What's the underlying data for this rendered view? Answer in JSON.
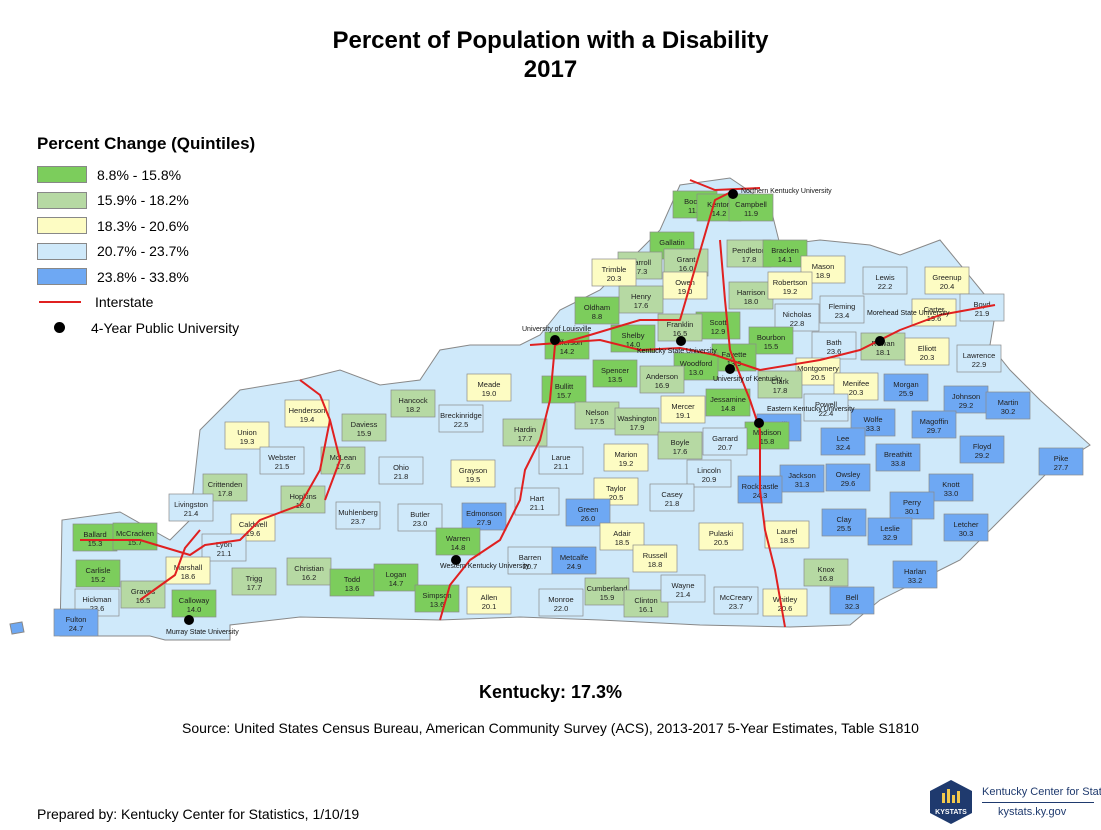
{
  "title": {
    "line1": "Percent of Population with a Disability",
    "line2": "2017"
  },
  "legend": {
    "title": "Percent Change (Quintiles)",
    "classes": [
      {
        "label": "8.8% - 15.8%",
        "color": "#7ccd5c"
      },
      {
        "label": "15.9% - 18.2%",
        "color": "#b6d9a3"
      },
      {
        "label": "18.3% - 20.6%",
        "color": "#fdfcc3"
      },
      {
        "label": "20.7% - 23.7%",
        "color": "#cfe9fa"
      },
      {
        "label": "23.8% - 33.8%",
        "color": "#6ea8f3"
      }
    ],
    "interstate_label": "Interstate",
    "interstate_color": "#e02020",
    "university_label": "4-Year Public University"
  },
  "counties": [
    {
      "name": "Boone",
      "value": "11.1"
    },
    {
      "name": "Kenton",
      "value": "14.2"
    },
    {
      "name": "Campbell",
      "value": "11.9"
    },
    {
      "name": "Gallatin",
      "value": "14.1"
    },
    {
      "name": "Carroll",
      "value": "17.3"
    },
    {
      "name": "Trimble",
      "value": "20.3"
    },
    {
      "name": "Grant",
      "value": "16.0"
    },
    {
      "name": "Pendleton",
      "value": "17.8"
    },
    {
      "name": "Bracken",
      "value": "14.1"
    },
    {
      "name": "Mason",
      "value": "18.9"
    },
    {
      "name": "Lewis",
      "value": "22.2"
    },
    {
      "name": "Greenup",
      "value": "20.4"
    },
    {
      "name": "Boyd",
      "value": "21.9"
    },
    {
      "name": "Owen",
      "value": "19.0"
    },
    {
      "name": "Henry",
      "value": "17.6"
    },
    {
      "name": "Oldham",
      "value": "8.8"
    },
    {
      "name": "Harrison",
      "value": "18.0"
    },
    {
      "name": "Robertson",
      "value": "19.2"
    },
    {
      "name": "Fleming",
      "value": "23.4"
    },
    {
      "name": "Carter",
      "value": "19.6"
    },
    {
      "name": "Scott",
      "value": "12.9"
    },
    {
      "name": "Franklin",
      "value": "16.5"
    },
    {
      "name": "Shelby",
      "value": "14.0"
    },
    {
      "name": "Jefferson",
      "value": "14.2"
    },
    {
      "name": "Nicholas",
      "value": "22.8"
    },
    {
      "name": "Bath",
      "value": "23.6"
    },
    {
      "name": "Rowan",
      "value": "18.1"
    },
    {
      "name": "Elliott",
      "value": "20.3"
    },
    {
      "name": "Lawrence",
      "value": "22.9"
    },
    {
      "name": "Bourbon",
      "value": "15.5"
    },
    {
      "name": "Fayette",
      "value": "13.9"
    },
    {
      "name": "Woodford",
      "value": "13.0"
    },
    {
      "name": "Anderson",
      "value": "16.9"
    },
    {
      "name": "Spencer",
      "value": "13.5"
    },
    {
      "name": "Bullitt",
      "value": "15.7"
    },
    {
      "name": "Meade",
      "value": "19.0"
    },
    {
      "name": "Montgomery",
      "value": "20.5"
    },
    {
      "name": "Clark",
      "value": "17.8"
    },
    {
      "name": "Menifee",
      "value": "20.3"
    },
    {
      "name": "Morgan",
      "value": "25.9"
    },
    {
      "name": "Johnson",
      "value": "29.2"
    },
    {
      "name": "Martin",
      "value": "30.2"
    },
    {
      "name": "Hancock",
      "value": "18.2"
    },
    {
      "name": "Breckinridge",
      "value": "22.5"
    },
    {
      "name": "Nelson",
      "value": "17.5"
    },
    {
      "name": "Washington",
      "value": "17.9"
    },
    {
      "name": "Mercer",
      "value": "19.1"
    },
    {
      "name": "Jessamine",
      "value": "14.8"
    },
    {
      "name": "Powell",
      "value": "22.4"
    },
    {
      "name": "Estill",
      "value": "25.6"
    },
    {
      "name": "Wolfe",
      "value": "33.3"
    },
    {
      "name": "Magoffin",
      "value": "29.7"
    },
    {
      "name": "Floyd",
      "value": "29.2"
    },
    {
      "name": "Pike",
      "value": "27.7"
    },
    {
      "name": "Henderson",
      "value": "19.4"
    },
    {
      "name": "Daviess",
      "value": "15.9"
    },
    {
      "name": "Union",
      "value": "19.3"
    },
    {
      "name": "Hardin",
      "value": "17.7"
    },
    {
      "name": "Madison",
      "value": "15.8"
    },
    {
      "name": "Garrard",
      "value": "20.7"
    },
    {
      "name": "Boyle",
      "value": "17.6"
    },
    {
      "name": "Lee",
      "value": "32.4"
    },
    {
      "name": "Breathitt",
      "value": "33.8"
    },
    {
      "name": "Webster",
      "value": "21.5"
    },
    {
      "name": "McLean",
      "value": "17.6"
    },
    {
      "name": "Ohio",
      "value": "21.8"
    },
    {
      "name": "Grayson",
      "value": "19.5"
    },
    {
      "name": "Larue",
      "value": "21.1"
    },
    {
      "name": "Marion",
      "value": "19.2"
    },
    {
      "name": "Lincoln",
      "value": "20.9"
    },
    {
      "name": "Jackson",
      "value": "31.3"
    },
    {
      "name": "Owsley",
      "value": "29.6"
    },
    {
      "name": "Knott",
      "value": "33.0"
    },
    {
      "name": "Perry",
      "value": "30.1"
    },
    {
      "name": "Letcher",
      "value": "30.3"
    },
    {
      "name": "Crittenden",
      "value": "17.8"
    },
    {
      "name": "Hopkins",
      "value": "18.0"
    },
    {
      "name": "Livingston",
      "value": "21.4"
    },
    {
      "name": "Caldwell",
      "value": "19.6"
    },
    {
      "name": "Muhlenberg",
      "value": "23.7"
    },
    {
      "name": "Butler",
      "value": "23.0"
    },
    {
      "name": "Edmonson",
      "value": "27.9"
    },
    {
      "name": "Hart",
      "value": "21.1"
    },
    {
      "name": "Taylor",
      "value": "20.5"
    },
    {
      "name": "Casey",
      "value": "21.8"
    },
    {
      "name": "Rockcastle",
      "value": "24.3"
    },
    {
      "name": "Clay",
      "value": "25.5"
    },
    {
      "name": "Leslie",
      "value": "32.9"
    },
    {
      "name": "Green",
      "value": "26.0"
    },
    {
      "name": "Adair",
      "value": "18.5"
    },
    {
      "name": "Pulaski",
      "value": "20.5"
    },
    {
      "name": "Laurel",
      "value": "18.5"
    },
    {
      "name": "Ballard",
      "value": "15.3"
    },
    {
      "name": "McCracken",
      "value": "15.7"
    },
    {
      "name": "Lyon",
      "value": "21.1"
    },
    {
      "name": "Christian",
      "value": "16.2"
    },
    {
      "name": "Todd",
      "value": "13.6"
    },
    {
      "name": "Logan",
      "value": "14.7"
    },
    {
      "name": "Warren",
      "value": "14.8"
    },
    {
      "name": "Barren",
      "value": "20.7"
    },
    {
      "name": "Metcalfe",
      "value": "24.9"
    },
    {
      "name": "Russell",
      "value": "18.8"
    },
    {
      "name": "Knox",
      "value": "16.8"
    },
    {
      "name": "Harlan",
      "value": "33.2"
    },
    {
      "name": "Carlisle",
      "value": "15.2"
    },
    {
      "name": "Marshall",
      "value": "18.6"
    },
    {
      "name": "Trigg",
      "value": "17.7"
    },
    {
      "name": "Graves",
      "value": "16.5"
    },
    {
      "name": "Hickman",
      "value": "23.6"
    },
    {
      "name": "Calloway",
      "value": "14.0"
    },
    {
      "name": "Fulton",
      "value": "24.7"
    },
    {
      "name": "Simpson",
      "value": "13.6"
    },
    {
      "name": "Allen",
      "value": "20.1"
    },
    {
      "name": "Monroe",
      "value": "22.0"
    },
    {
      "name": "Cumberland",
      "value": "15.9"
    },
    {
      "name": "Clinton",
      "value": "16.1"
    },
    {
      "name": "Wayne",
      "value": "21.4"
    },
    {
      "name": "McCreary",
      "value": "23.7"
    },
    {
      "name": "Whitley",
      "value": "20.6"
    },
    {
      "name": "Bell",
      "value": "32.3"
    }
  ],
  "universities": [
    {
      "name": "Northern Kentucky University"
    },
    {
      "name": "University of Louisville"
    },
    {
      "name": "Kentucky State University"
    },
    {
      "name": "Morehead State University"
    },
    {
      "name": "University of Kentucky"
    },
    {
      "name": "Eastern Kentucky University"
    },
    {
      "name": "Western Kentucky University"
    },
    {
      "name": "Murray State University"
    }
  ],
  "state_total": "Kentucky:  17.3%",
  "source": "Source:  United States Census Bureau, American Community Survey (ACS), 2013-2017 5-Year Estimates, Table S1810",
  "prepared_by": "Prepared by:  Kentucky Center for Statistics, 1/10/19",
  "logo": {
    "mark": "KYSTATS",
    "name": "Kentucky Center for Statistics",
    "url": "kystats.ky.gov"
  }
}
